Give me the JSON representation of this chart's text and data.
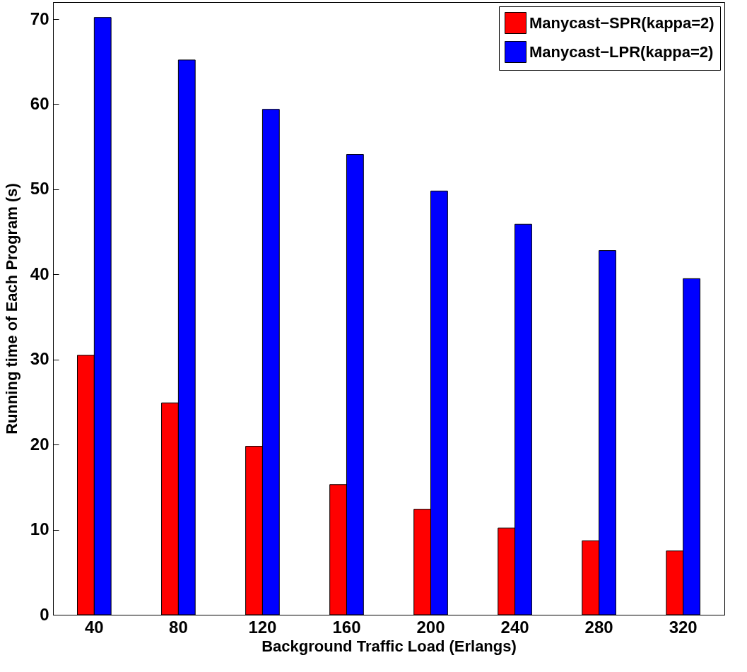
{
  "chart_data": {
    "type": "bar",
    "xlabel": "Background Traffic Load (Erlangs)",
    "ylabel": "Running time of Each Program (s)",
    "categories": [
      "40",
      "80",
      "120",
      "160",
      "200",
      "240",
      "280",
      "320"
    ],
    "series": [
      {
        "name": "Manycast−SPR(kappa=2)",
        "color": "#ff0000",
        "values": [
          30.5,
          24.9,
          19.8,
          15.3,
          12.4,
          10.2,
          8.7,
          7.5
        ]
      },
      {
        "name": "Manycast−LPR(kappa=2)",
        "color": "#0000ff",
        "values": [
          70.2,
          65.2,
          59.4,
          54.1,
          49.8,
          45.9,
          42.8,
          39.5
        ]
      }
    ],
    "ylim": [
      0,
      72
    ],
    "yticks": [
      0,
      10,
      20,
      30,
      40,
      50,
      60,
      70
    ],
    "legend": "top right",
    "grid": false
  }
}
